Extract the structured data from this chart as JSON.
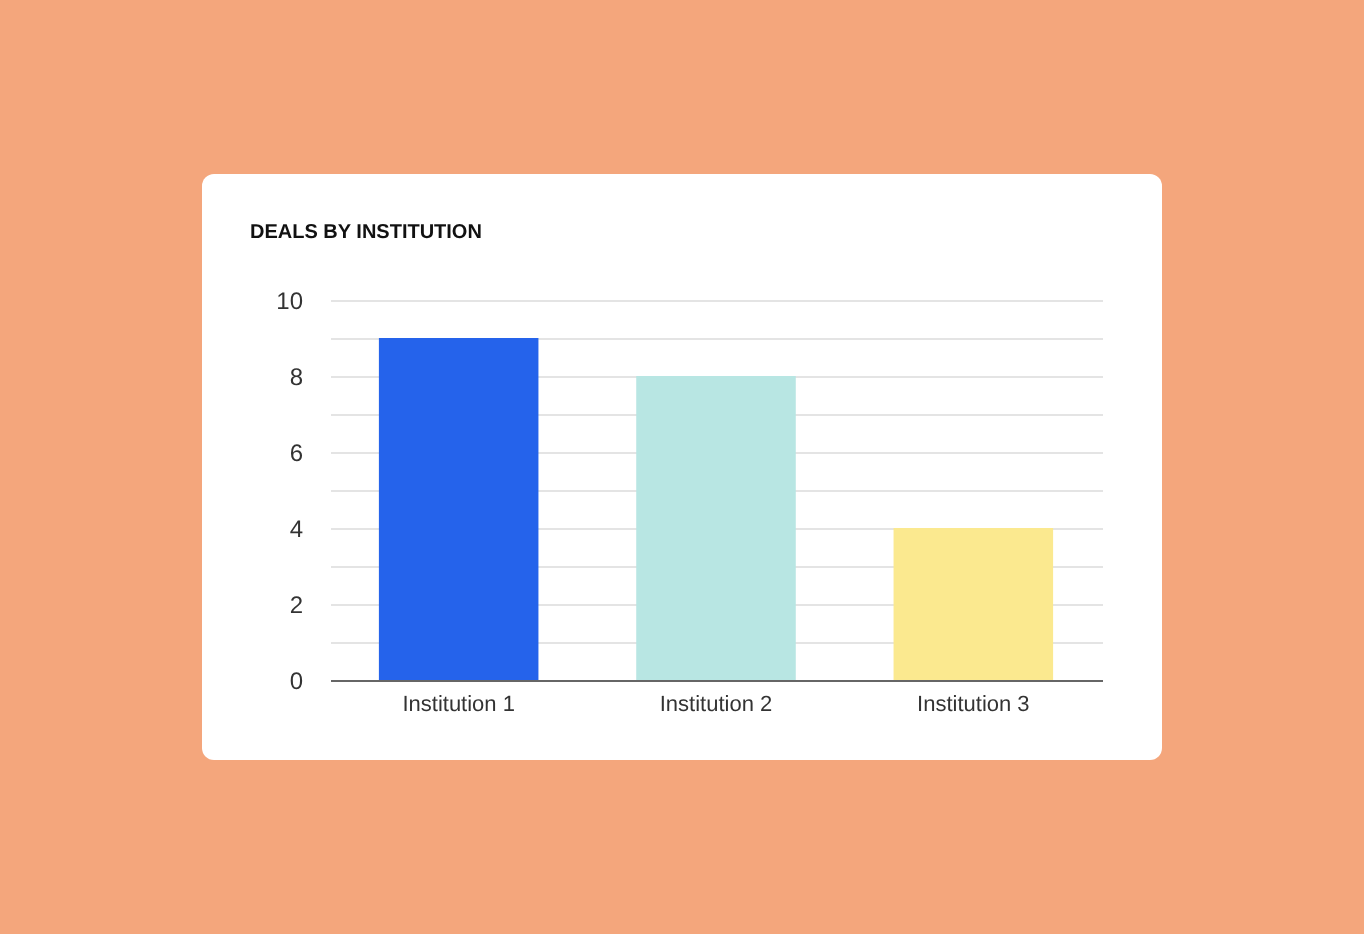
{
  "chart_data": {
    "type": "bar",
    "title": "DEALS BY INSTITUTION",
    "categories": [
      "Institution 1",
      "Institution 2",
      "Institution 3"
    ],
    "values": [
      9,
      8,
      4
    ],
    "colors": [
      "#2563eb",
      "#b8e6e3",
      "#fbe98f"
    ],
    "ylim": [
      0,
      10
    ],
    "yticks": [
      0,
      {
        "value": 1,
        "label": null
      },
      2,
      {
        "value": 3,
        "label": null
      },
      4,
      {
        "value": 5,
        "label": null
      },
      6,
      {
        "value": 7,
        "label": null
      },
      8,
      {
        "value": 9,
        "label": null
      },
      10
    ],
    "grid": "y"
  }
}
